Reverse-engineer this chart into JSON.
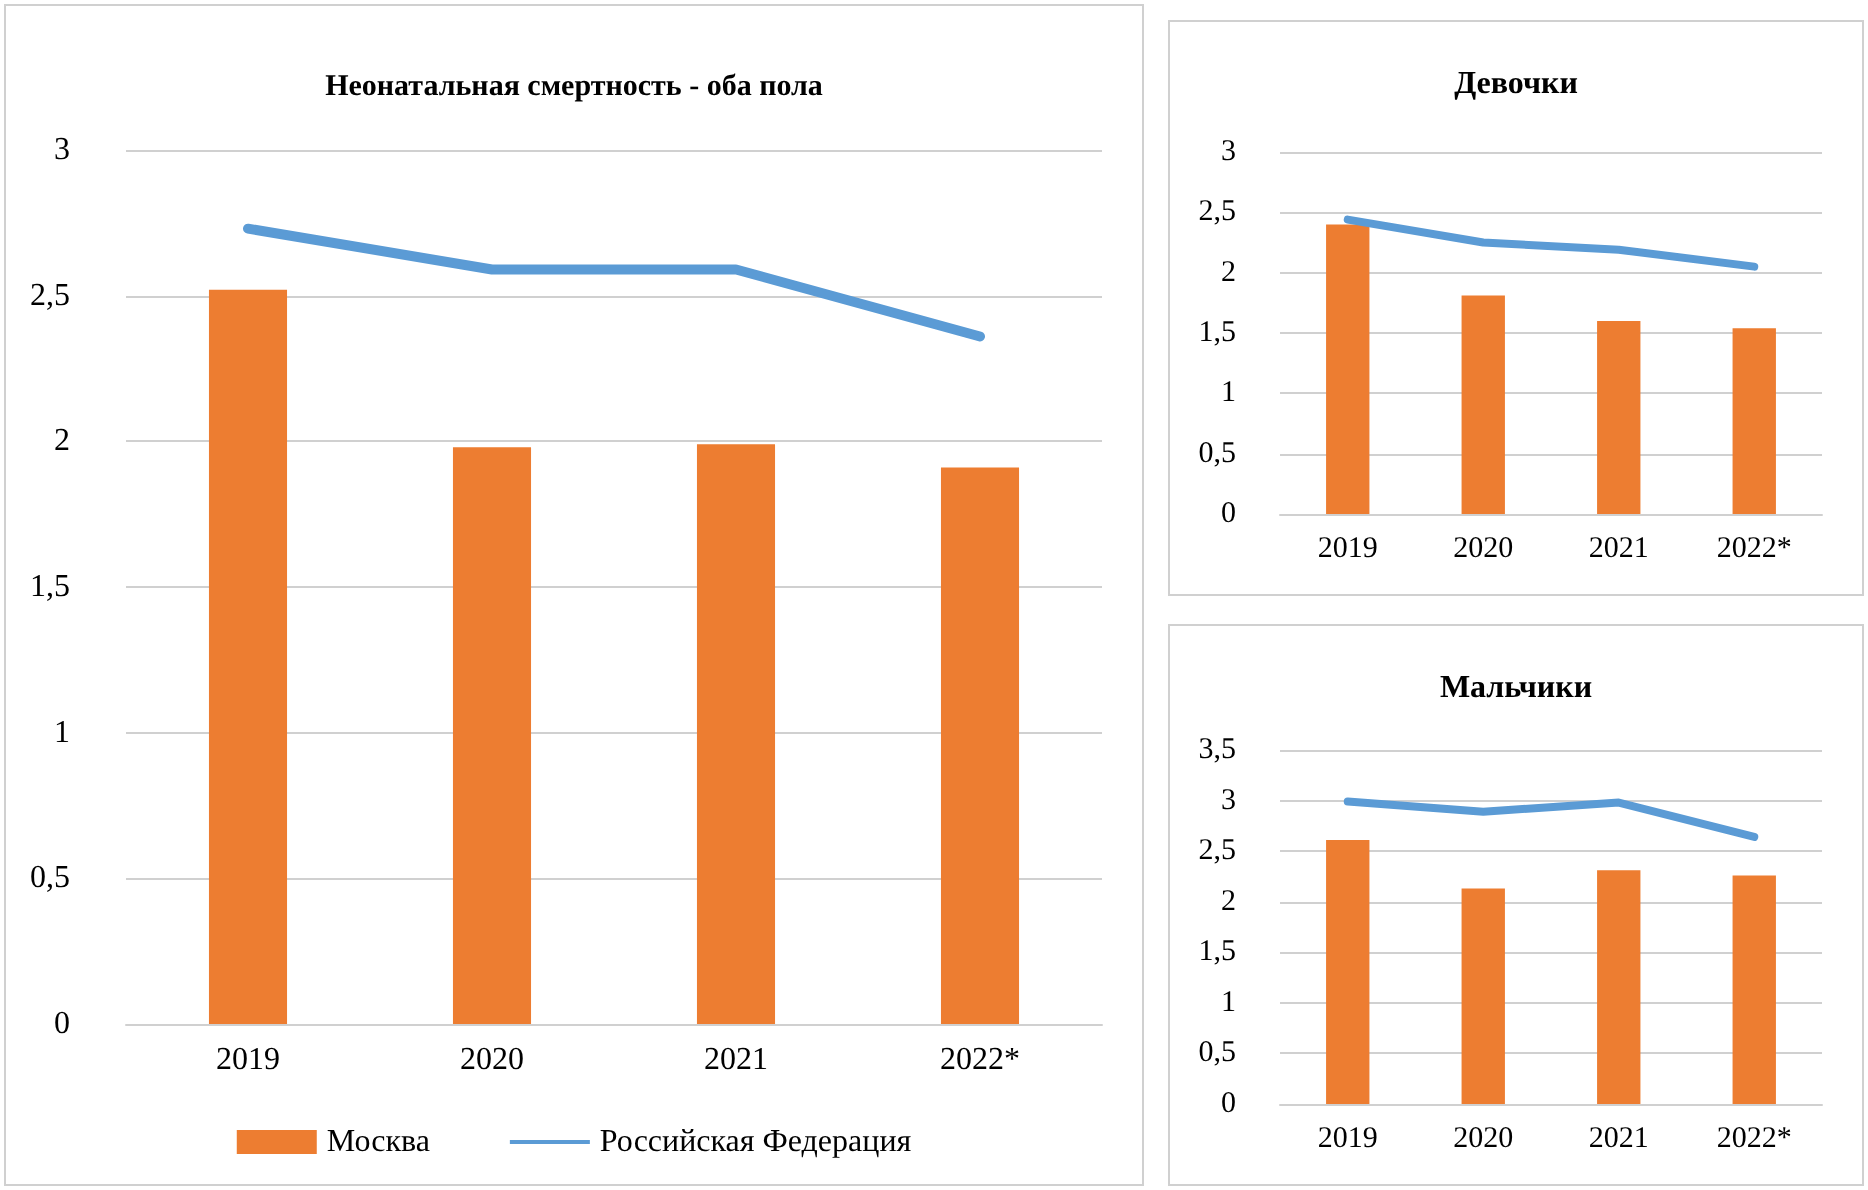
{
  "chart_data": [
    {
      "type": "bar",
      "title": "Неонатальная смертность - оба пола",
      "categories": [
        "2019",
        "2020",
        "2021",
        "2022*"
      ],
      "ylim": [
        0,
        3
      ],
      "yticks": [
        0,
        {
          "value": 0.5,
          "label": "0,5"
        },
        1,
        {
          "value": 1.5,
          "label": "1,5"
        },
        2,
        {
          "value": 2.5,
          "label": "2,5"
        },
        3
      ],
      "grid": "y",
      "legend": "bottom",
      "marker": "none",
      "series": [
        {
          "name": "Москва",
          "color": "#ed7d31",
          "values": [
            2.52,
            1.98,
            1.99,
            1.91
          ]
        },
        {
          "name": "Российская Федерация",
          "type": "line",
          "color": "#5b9bd5",
          "values": [
            2.73,
            2.59,
            2.59,
            2.36
          ]
        }
      ]
    },
    {
      "type": "bar",
      "title": "Девочки",
      "categories": [
        "2019",
        "2020",
        "2021",
        "2022*"
      ],
      "ylim": [
        0,
        3
      ],
      "yticks": [
        0,
        {
          "value": 0.5,
          "label": "0,5"
        },
        1,
        {
          "value": 1.5,
          "label": "1,5"
        },
        2,
        {
          "value": 2.5,
          "label": "2,5"
        },
        3
      ],
      "grid": "y",
      "legend": false,
      "marker": "none",
      "series": [
        {
          "color": "#ed7d31",
          "values": [
            2.4,
            1.81,
            1.6,
            1.54
          ]
        },
        {
          "type": "line",
          "color": "#5b9bd5",
          "values": [
            2.44,
            2.25,
            2.19,
            2.05
          ]
        }
      ]
    },
    {
      "type": "bar",
      "title": "Мальчики",
      "categories": [
        "2019",
        "2020",
        "2021",
        "2022*"
      ],
      "ylim": [
        0,
        3.5
      ],
      "yticks": [
        0,
        {
          "value": 0.5,
          "label": "0,5"
        },
        1,
        {
          "value": 1.5,
          "label": "1,5"
        },
        2,
        {
          "value": 2.5,
          "label": "2,5"
        },
        3,
        {
          "value": 3.5,
          "label": "3,5"
        }
      ],
      "grid": "y",
      "legend": false,
      "marker": "none",
      "series": [
        {
          "color": "#ed7d31",
          "values": [
            2.61,
            2.13,
            2.31,
            2.26
          ]
        },
        {
          "type": "line",
          "color": "#5b9bd5",
          "values": [
            2.99,
            2.89,
            2.98,
            2.64
          ]
        }
      ]
    }
  ]
}
